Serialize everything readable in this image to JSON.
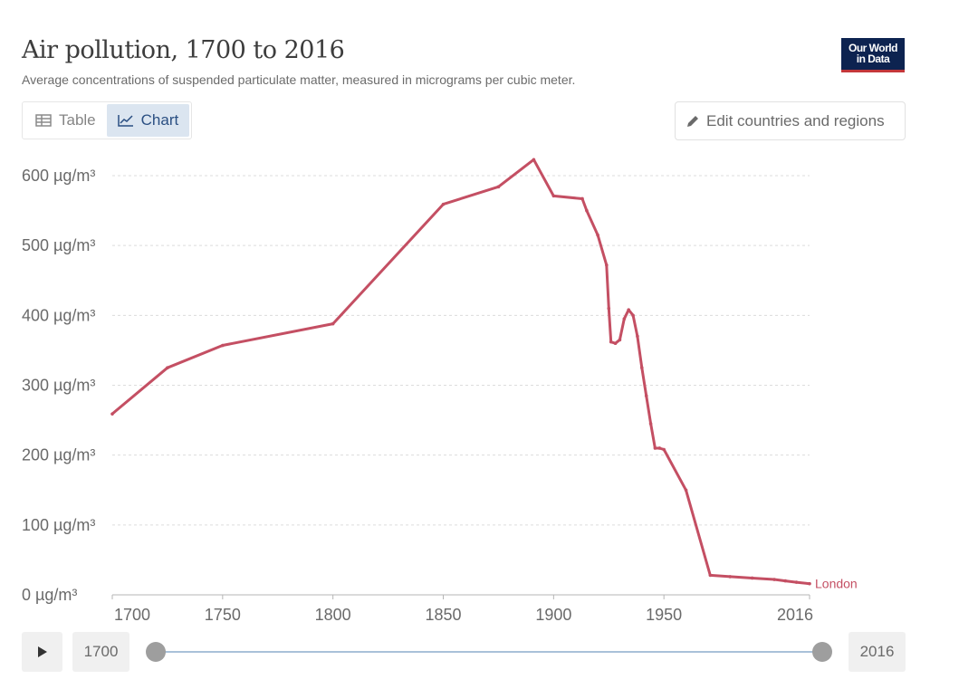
{
  "header": {
    "title": "Air pollution, 1700 to 2016",
    "subtitle": "Average concentrations of suspended particulate matter, measured in micrograms per cubic meter.",
    "logo_line1": "Our World",
    "logo_line2": "in Data"
  },
  "tabs": [
    {
      "label": "Table",
      "icon": "table-icon",
      "active": false
    },
    {
      "label": "Chart",
      "icon": "line-chart-icon",
      "active": true
    }
  ],
  "edit_button": {
    "label": "Edit countries and regions",
    "icon": "pencil-icon"
  },
  "timeline": {
    "start_label": "1700",
    "end_label": "2016",
    "play_icon": "play-icon"
  },
  "colors": {
    "series": "#c44f63",
    "accent": "#2a4f82",
    "logo_bg": "#0d2350",
    "logo_stripe": "#c4373a"
  },
  "chart_data": {
    "type": "line",
    "title": "Air pollution, 1700 to 2016",
    "subtitle": "Average concentrations of suspended particulate matter, measured in micrograms per cubic meter.",
    "xlim": [
      1700,
      2016
    ],
    "ylim": [
      0,
      600
    ],
    "xticks": [
      "1700",
      "1750",
      "1800",
      "1850",
      "1900",
      "1950",
      "2016"
    ],
    "yticks": [
      "0 µg/m³",
      "100 µg/m³",
      "200 µg/m³",
      "300 µg/m³",
      "400 µg/m³",
      "500 µg/m³",
      "600 µg/m³"
    ],
    "grid": true,
    "series": [
      {
        "name": "London",
        "color": "#c44f63",
        "x": [
          1700,
          1725,
          1750,
          1800,
          1850,
          1875,
          1891,
          1900,
          1913,
          1915,
          1920,
          1924,
          1925,
          1926,
          1928,
          1930,
          1932,
          1934,
          1936,
          1938,
          1940,
          1942,
          1944,
          1946,
          1948,
          1950,
          1960,
          1971,
          1980,
          1990,
          2000,
          2005,
          2010,
          2016
        ],
        "y": [
          259,
          325,
          357,
          388,
          559,
          584,
          623,
          571,
          567,
          550,
          515,
          472,
          410,
          362,
          360,
          365,
          395,
          408,
          400,
          370,
          325,
          285,
          245,
          210,
          210,
          208,
          150,
          28,
          26,
          24,
          22,
          20,
          18,
          16
        ]
      }
    ]
  }
}
